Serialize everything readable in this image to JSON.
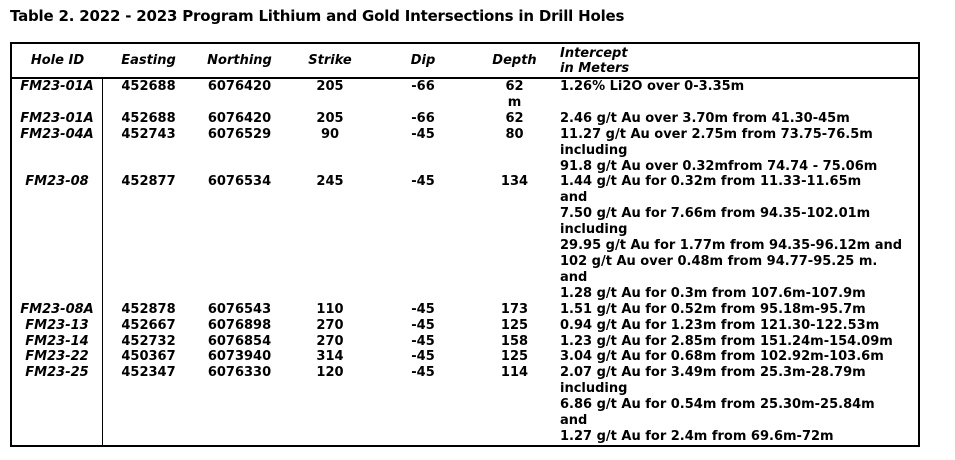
{
  "title": "Table 2. 2022 - 2023 Program Lithium and Gold Intersections in Drill Holes",
  "colors": {
    "background": "#ffffff",
    "text": "#000000",
    "border": "#000000"
  },
  "table": {
    "headers": [
      "Hole ID",
      "Easting",
      "Northing",
      "Strike",
      "Dip",
      "Depth",
      "Intercept\nin Meters"
    ],
    "rows": [
      {
        "hole_id": "FM23-01A",
        "easting": "452688",
        "northing": "6076420",
        "strike": "205",
        "dip": "-66",
        "depth": "62\nm",
        "intercept_lines": [
          "1.26% Li2O over 0-3.35m"
        ]
      },
      {
        "hole_id": "FM23-01A",
        "easting": "452688",
        "northing": "6076420",
        "strike": "205",
        "dip": "-66",
        "depth": "62",
        "intercept_lines": [
          "2.46 g/t Au over 3.70m from 41.30-45m"
        ]
      },
      {
        "hole_id": "FM23-04A",
        "easting": "452743",
        "northing": "6076529",
        "strike": "90",
        "dip": "-45",
        "depth": "80",
        "intercept_lines": [
          "11.27 g/t Au over 2.75m from 73.75-76.5m",
          "including",
          "91.8 g/t Au over 0.32mfrom 74.74 - 75.06m"
        ]
      },
      {
        "hole_id": "FM23-08",
        "easting": "452877",
        "northing": "6076534",
        "strike": "245",
        "dip": "-45",
        "depth": "134",
        "intercept_lines": [
          "1.44 g/t Au for 0.32m from 11.33-11.65m",
          "and",
          "7.50 g/t Au for 7.66m from 94.35-102.01m",
          "including",
          "29.95 g/t Au for 1.77m from 94.35-96.12m and",
          "102 g/t Au over 0.48m from 94.77-95.25 m.",
          "and",
          "1.28 g/t Au for 0.3m from 107.6m-107.9m"
        ]
      },
      {
        "hole_id": "FM23-08A",
        "easting": "452878",
        "northing": "6076543",
        "strike": "110",
        "dip": "-45",
        "depth": "173",
        "intercept_lines": [
          "1.51 g/t Au for 0.52m from 95.18m-95.7m"
        ]
      },
      {
        "hole_id": "FM23-13",
        "easting": "452667",
        "northing": "6076898",
        "strike": "270",
        "dip": "-45",
        "depth": "125",
        "intercept_lines": [
          "0.94 g/t Au for 1.23m from 121.30-122.53m"
        ]
      },
      {
        "hole_id": "FM23-14",
        "easting": "452732",
        "northing": "6076854",
        "strike": "270",
        "dip": "-45",
        "depth": "158",
        "intercept_lines": [
          "1.23 g/t Au for 2.85m from 151.24m-154.09m"
        ]
      },
      {
        "hole_id": "FM23-22",
        "easting": "450367",
        "northing": "6073940",
        "strike": "314",
        "dip": "-45",
        "depth": "125",
        "intercept_lines": [
          "3.04 g/t Au for 0.68m from 102.92m-103.6m"
        ]
      },
      {
        "hole_id": "FM23-25",
        "easting": "452347",
        "northing": "6076330",
        "strike": "120",
        "dip": "-45",
        "depth": "114",
        "intercept_lines": [
          "2.07 g/t Au for 3.49m from 25.3m-28.79m",
          "including",
          "6.86 g/t Au for 0.54m from 25.30m-25.84m",
          "and",
          "1.27 g/t Au for 2.4m from 69.6m-72m"
        ]
      }
    ]
  }
}
